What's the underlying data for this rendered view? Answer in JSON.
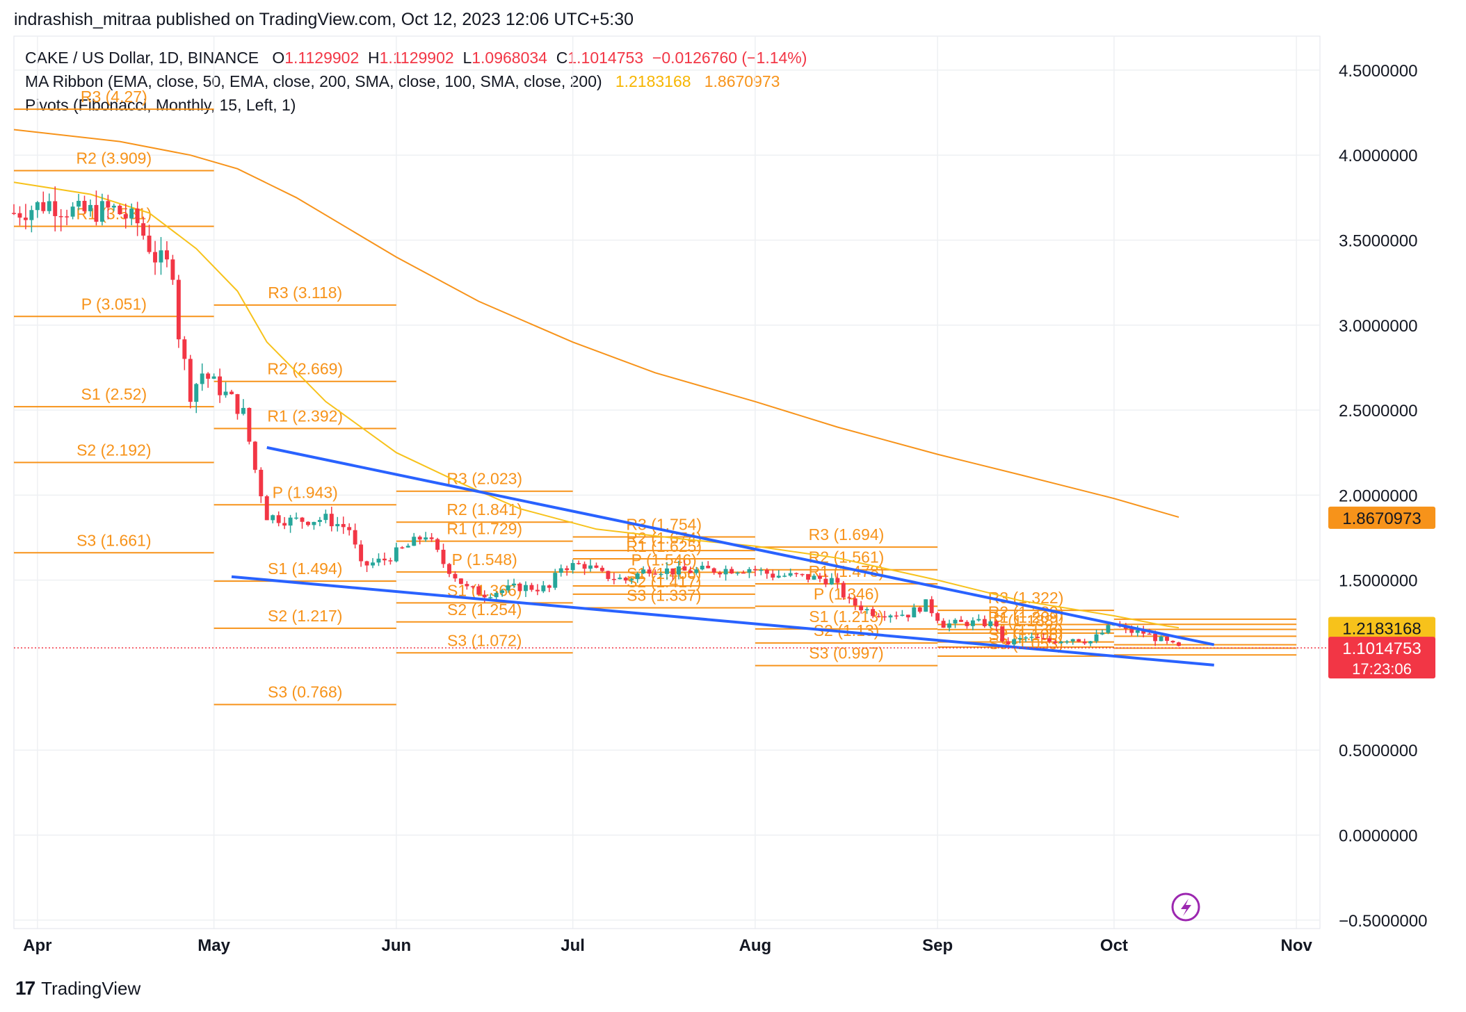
{
  "header": {
    "publisher_line": "indrashish_mitraa published on TradingView.com, Oct 12, 2023 12:06 UTC+5:30"
  },
  "legend": {
    "symbol": "CAKE / US Dollar, 1D, BINANCE",
    "o_label": "O",
    "o_value": "1.1129902",
    "h_label": "H",
    "h_value": "1.1129902",
    "l_label": "L",
    "l_value": "1.0968034",
    "c_label": "C",
    "c_value": "1.1014753",
    "change": "−0.0126760 (−1.14%)",
    "ma_ribbon": "MA Ribbon (EMA, close, 50, EMA, close, 200, SMA, close, 100, SMA, close, 200)",
    "ma_value_1": "1.2183168",
    "ma_value_2": "1.8670973",
    "pivots": "Pivots (Fibonacci, Monthly, 15, Left, 1)"
  },
  "colors": {
    "up": "#26a69a",
    "down": "#f23645",
    "pivot": "#f7931a",
    "ema50": "#f7c21b",
    "ema200": "#f7931a",
    "trend": "#2962ff",
    "grid": "#eef0f3",
    "text": "#131722"
  },
  "chart_data": {
    "type": "candlestick",
    "symbol": "CAKE / US Dollar",
    "interval": "1D",
    "exchange": "BINANCE",
    "x_range": [
      "2023-03-28",
      "2023-11-05"
    ],
    "ylim": [
      -0.55,
      4.7
    ],
    "y_ticks": [
      "4.5000000",
      "4.0000000",
      "3.5000000",
      "3.0000000",
      "2.5000000",
      "2.0000000",
      "1.5000000",
      "0.5000000",
      "0.0000000",
      "−0.5000000"
    ],
    "y_tick_values": [
      4.5,
      4.0,
      3.5,
      3.0,
      2.5,
      2.0,
      1.5,
      0.5,
      0.0,
      -0.5
    ],
    "x_ticks": [
      {
        "label": "Apr",
        "date": "2023-04-01"
      },
      {
        "label": "May",
        "date": "2023-05-01"
      },
      {
        "label": "Jun",
        "date": "2023-06-01"
      },
      {
        "label": "Jul",
        "date": "2023-07-01"
      },
      {
        "label": "Aug",
        "date": "2023-08-01"
      },
      {
        "label": "Sep",
        "date": "2023-09-01"
      },
      {
        "label": "Oct",
        "date": "2023-10-01"
      },
      {
        "label": "Nov",
        "date": "2023-11-01"
      }
    ],
    "price_badges": [
      {
        "value": 1.8670973,
        "label": "1.8670973",
        "color": "#f7931a",
        "text_color": "#131722"
      },
      {
        "value": 1.2183168,
        "label": "1.2183168",
        "color": "#f7c21b",
        "text_color": "#131722"
      },
      {
        "value": 1.1014753,
        "label": "1.1014753",
        "sub": "17:23:06",
        "color": "#f23645",
        "text_color": "#ffffff"
      }
    ],
    "last_price": 1.1014753,
    "price_keypoints": [
      [
        "2023-03-28",
        3.66
      ],
      [
        "2023-04-03",
        3.72
      ],
      [
        "2023-04-08",
        3.66
      ],
      [
        "2023-04-14",
        3.68
      ],
      [
        "2023-04-18",
        3.6
      ],
      [
        "2023-04-21",
        3.4
      ],
      [
        "2023-04-24",
        3.33
      ],
      [
        "2023-04-25",
        2.95
      ],
      [
        "2023-04-27",
        2.6
      ],
      [
        "2023-04-29",
        2.72
      ],
      [
        "2023-05-04",
        2.56
      ],
      [
        "2023-05-06",
        2.48
      ],
      [
        "2023-05-08",
        2.15
      ],
      [
        "2023-05-10",
        1.88
      ],
      [
        "2023-05-14",
        1.85
      ],
      [
        "2023-05-20",
        1.86
      ],
      [
        "2023-05-24",
        1.8
      ],
      [
        "2023-05-26",
        1.58
      ],
      [
        "2023-05-30",
        1.62
      ],
      [
        "2023-06-03",
        1.7
      ],
      [
        "2023-06-06",
        1.77
      ],
      [
        "2023-06-09",
        1.6
      ],
      [
        "2023-06-13",
        1.45
      ],
      [
        "2023-06-16",
        1.42
      ],
      [
        "2023-06-22",
        1.46
      ],
      [
        "2023-06-27",
        1.45
      ],
      [
        "2023-06-29",
        1.58
      ],
      [
        "2023-07-03",
        1.59
      ],
      [
        "2023-07-06",
        1.53
      ],
      [
        "2023-07-10",
        1.5
      ],
      [
        "2023-07-14",
        1.57
      ],
      [
        "2023-07-19",
        1.55
      ],
      [
        "2023-07-25",
        1.56
      ],
      [
        "2023-07-31",
        1.57
      ],
      [
        "2023-08-04",
        1.53
      ],
      [
        "2023-08-09",
        1.52
      ],
      [
        "2023-08-14",
        1.5
      ],
      [
        "2023-08-17",
        1.37
      ],
      [
        "2023-08-21",
        1.31
      ],
      [
        "2023-08-27",
        1.3
      ],
      [
        "2023-08-30",
        1.36
      ],
      [
        "2023-09-02",
        1.24
      ],
      [
        "2023-09-07",
        1.25
      ],
      [
        "2023-09-11",
        1.24
      ],
      [
        "2023-09-12",
        1.12
      ],
      [
        "2023-09-16",
        1.16
      ],
      [
        "2023-09-20",
        1.14
      ],
      [
        "2023-09-24",
        1.16
      ],
      [
        "2023-09-27",
        1.14
      ],
      [
        "2023-10-01",
        1.24
      ],
      [
        "2023-10-03",
        1.2
      ],
      [
        "2023-10-06",
        1.19
      ],
      [
        "2023-10-08",
        1.16
      ],
      [
        "2023-10-10",
        1.13
      ],
      [
        "2023-10-12",
        1.1
      ]
    ],
    "ema50_points": [
      [
        "2023-03-28",
        3.84
      ],
      [
        "2023-04-10",
        3.77
      ],
      [
        "2023-04-20",
        3.66
      ],
      [
        "2023-04-28",
        3.45
      ],
      [
        "2023-05-05",
        3.2
      ],
      [
        "2023-05-10",
        2.9
      ],
      [
        "2023-05-20",
        2.55
      ],
      [
        "2023-06-01",
        2.25
      ],
      [
        "2023-06-12",
        2.07
      ],
      [
        "2023-06-22",
        1.92
      ],
      [
        "2023-07-05",
        1.8
      ],
      [
        "2023-07-20",
        1.74
      ],
      [
        "2023-08-01",
        1.7
      ],
      [
        "2023-08-15",
        1.63
      ],
      [
        "2023-09-01",
        1.5
      ],
      [
        "2023-09-15",
        1.38
      ],
      [
        "2023-10-01",
        1.29
      ],
      [
        "2023-10-10",
        1.23
      ],
      [
        "2023-10-12",
        1.22
      ]
    ],
    "ema200_points": [
      [
        "2023-03-28",
        4.15
      ],
      [
        "2023-04-15",
        4.08
      ],
      [
        "2023-04-27",
        4.0
      ],
      [
        "2023-05-05",
        3.92
      ],
      [
        "2023-05-15",
        3.75
      ],
      [
        "2023-06-01",
        3.4
      ],
      [
        "2023-06-15",
        3.14
      ],
      [
        "2023-07-01",
        2.9
      ],
      [
        "2023-07-15",
        2.72
      ],
      [
        "2023-08-01",
        2.55
      ],
      [
        "2023-08-15",
        2.4
      ],
      [
        "2023-09-01",
        2.24
      ],
      [
        "2023-09-15",
        2.12
      ],
      [
        "2023-10-01",
        1.98
      ],
      [
        "2023-10-12",
        1.87
      ]
    ],
    "trendlines": [
      {
        "from": [
          "2023-05-10",
          2.28
        ],
        "to": [
          "2023-10-18",
          1.12
        ]
      },
      {
        "from": [
          "2023-05-04",
          1.52
        ],
        "to": [
          "2023-10-18",
          1.0
        ]
      }
    ],
    "pivot_periods": [
      {
        "start": "2023-03-28",
        "end": "2023-05-01",
        "levels": [
          {
            "label": "R3 (4.27)",
            "value": 4.27
          },
          {
            "label": "R2 (3.909)",
            "value": 3.909
          },
          {
            "label": "R1 (3.581)",
            "value": 3.581
          },
          {
            "label": "P (3.051)",
            "value": 3.051
          },
          {
            "label": "S1 (2.52)",
            "value": 2.52
          },
          {
            "label": "S2 (2.192)",
            "value": 2.192
          },
          {
            "label": "S3 (1.661)",
            "value": 1.661
          }
        ]
      },
      {
        "start": "2023-05-01",
        "end": "2023-06-01",
        "levels": [
          {
            "label": "R3 (3.118)",
            "value": 3.118
          },
          {
            "label": "R2 (2.669)",
            "value": 2.669
          },
          {
            "label": "R1 (2.392)",
            "value": 2.392
          },
          {
            "label": "P (1.943)",
            "value": 1.943
          },
          {
            "label": "S1 (1.494)",
            "value": 1.494
          },
          {
            "label": "S2 (1.217)",
            "value": 1.217
          },
          {
            "label": "S3 (0.768)",
            "value": 0.768
          }
        ]
      },
      {
        "start": "2023-06-01",
        "end": "2023-07-01",
        "levels": [
          {
            "label": "R3 (2.023)",
            "value": 2.023
          },
          {
            "label": "R2 (1.841)",
            "value": 1.841
          },
          {
            "label": "R1 (1.729)",
            "value": 1.729
          },
          {
            "label": "P (1.548)",
            "value": 1.548
          },
          {
            "label": "S1 (1.366)",
            "value": 1.366
          },
          {
            "label": "S2 (1.254)",
            "value": 1.254
          },
          {
            "label": "S3 (1.072)",
            "value": 1.072
          }
        ]
      },
      {
        "start": "2023-07-01",
        "end": "2023-08-01",
        "levels": [
          {
            "label": "R3 (1.754)",
            "value": 1.754
          },
          {
            "label": "R2 (1.674)",
            "value": 1.674
          },
          {
            "label": "R1 (1.625)",
            "value": 1.625
          },
          {
            "label": "P (1.546)",
            "value": 1.546
          },
          {
            "label": "S1 (1.466)",
            "value": 1.466
          },
          {
            "label": "S2 (1.417)",
            "value": 1.417
          },
          {
            "label": "S3 (1.337)",
            "value": 1.337
          }
        ]
      },
      {
        "start": "2023-08-01",
        "end": "2023-09-01",
        "levels": [
          {
            "label": "R3 (1.694)",
            "value": 1.694
          },
          {
            "label": "R2 (1.561)",
            "value": 1.561
          },
          {
            "label": "R1 (1.478)",
            "value": 1.478
          },
          {
            "label": "P (1.346)",
            "value": 1.346
          },
          {
            "label": "S1 (1.213)",
            "value": 1.213
          },
          {
            "label": "S2 (1.13)",
            "value": 1.13
          },
          {
            "label": "S3 (0.997)",
            "value": 0.997
          }
        ]
      },
      {
        "start": "2023-09-01",
        "end": "2023-10-01",
        "levels": [
          {
            "label": "R3 (1.322)",
            "value": 1.322
          },
          {
            "label": "R2 (1.239)",
            "value": 1.239
          },
          {
            "label": "R1 (1.209)",
            "value": 1.209
          },
          {
            "label": "P (1.188)",
            "value": 1.188
          },
          {
            "label": "S1 (1.136)",
            "value": 1.136
          },
          {
            "label": "S2 (1.106)",
            "value": 1.106
          },
          {
            "label": "S3 (1.053)",
            "value": 1.053
          }
        ]
      },
      {
        "start": "2023-10-01",
        "end": "2023-11-01",
        "levels": [
          {
            "label": "",
            "value": 1.27
          },
          {
            "label": "",
            "value": 1.24
          },
          {
            "label": "",
            "value": 1.21
          },
          {
            "label": "",
            "value": 1.17
          },
          {
            "label": "",
            "value": 1.12
          },
          {
            "label": "",
            "value": 1.1
          },
          {
            "label": "",
            "value": 1.06
          }
        ]
      }
    ]
  },
  "footer": {
    "brand": "TradingView",
    "logo_glyph": "17"
  }
}
